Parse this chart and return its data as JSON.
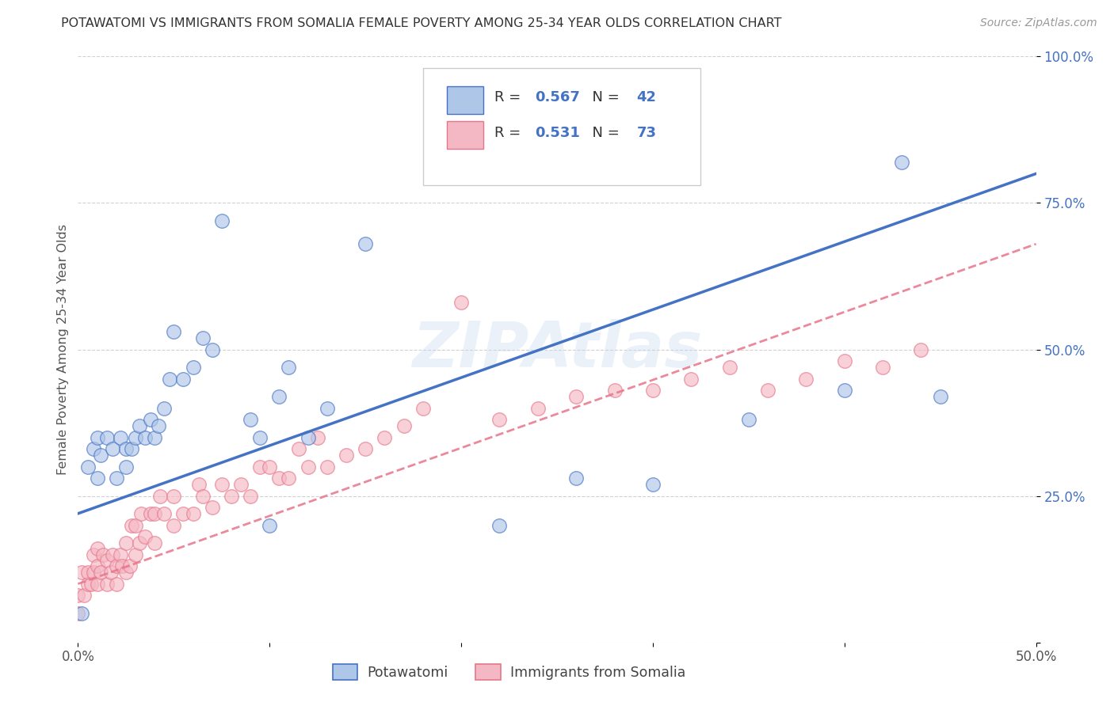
{
  "title": "POTAWATOMI VS IMMIGRANTS FROM SOMALIA FEMALE POVERTY AMONG 25-34 YEAR OLDS CORRELATION CHART",
  "source": "Source: ZipAtlas.com",
  "ylabel": "Female Poverty Among 25-34 Year Olds",
  "xlim": [
    0.0,
    0.5
  ],
  "ylim": [
    0.0,
    1.0
  ],
  "legend1_label": "Potawatomi",
  "legend2_label": "Immigrants from Somalia",
  "R1": 0.567,
  "N1": 42,
  "R2": 0.531,
  "N2": 73,
  "color1": "#aec6e8",
  "color2": "#f4b8c4",
  "line_color1": "#4472c4",
  "line_color2": "#e8758a",
  "background_color": "#ffffff",
  "watermark": "ZIPAtlas",
  "potawatomi_x": [
    0.002,
    0.005,
    0.008,
    0.01,
    0.01,
    0.012,
    0.015,
    0.018,
    0.02,
    0.022,
    0.025,
    0.025,
    0.028,
    0.03,
    0.032,
    0.035,
    0.038,
    0.04,
    0.042,
    0.045,
    0.048,
    0.05,
    0.055,
    0.06,
    0.065,
    0.07,
    0.075,
    0.09,
    0.095,
    0.1,
    0.105,
    0.11,
    0.12,
    0.13,
    0.15,
    0.22,
    0.26,
    0.3,
    0.35,
    0.4,
    0.43,
    0.45
  ],
  "potawatomi_y": [
    0.05,
    0.3,
    0.33,
    0.28,
    0.35,
    0.32,
    0.35,
    0.33,
    0.28,
    0.35,
    0.3,
    0.33,
    0.33,
    0.35,
    0.37,
    0.35,
    0.38,
    0.35,
    0.37,
    0.4,
    0.45,
    0.53,
    0.45,
    0.47,
    0.52,
    0.5,
    0.72,
    0.38,
    0.35,
    0.2,
    0.42,
    0.47,
    0.35,
    0.4,
    0.68,
    0.2,
    0.28,
    0.27,
    0.38,
    0.43,
    0.82,
    0.42
  ],
  "somalia_x": [
    0.0,
    0.0,
    0.002,
    0.003,
    0.005,
    0.005,
    0.007,
    0.008,
    0.008,
    0.01,
    0.01,
    0.01,
    0.012,
    0.013,
    0.015,
    0.015,
    0.017,
    0.018,
    0.02,
    0.02,
    0.022,
    0.023,
    0.025,
    0.025,
    0.027,
    0.028,
    0.03,
    0.03,
    0.032,
    0.033,
    0.035,
    0.038,
    0.04,
    0.04,
    0.043,
    0.045,
    0.05,
    0.05,
    0.055,
    0.06,
    0.063,
    0.065,
    0.07,
    0.075,
    0.08,
    0.085,
    0.09,
    0.095,
    0.1,
    0.105,
    0.11,
    0.115,
    0.12,
    0.125,
    0.13,
    0.14,
    0.15,
    0.16,
    0.17,
    0.18,
    0.2,
    0.22,
    0.24,
    0.26,
    0.28,
    0.3,
    0.32,
    0.34,
    0.36,
    0.38,
    0.4,
    0.42,
    0.44
  ],
  "somalia_y": [
    0.05,
    0.08,
    0.12,
    0.08,
    0.1,
    0.12,
    0.1,
    0.12,
    0.15,
    0.1,
    0.13,
    0.16,
    0.12,
    0.15,
    0.1,
    0.14,
    0.12,
    0.15,
    0.1,
    0.13,
    0.15,
    0.13,
    0.12,
    0.17,
    0.13,
    0.2,
    0.15,
    0.2,
    0.17,
    0.22,
    0.18,
    0.22,
    0.17,
    0.22,
    0.25,
    0.22,
    0.2,
    0.25,
    0.22,
    0.22,
    0.27,
    0.25,
    0.23,
    0.27,
    0.25,
    0.27,
    0.25,
    0.3,
    0.3,
    0.28,
    0.28,
    0.33,
    0.3,
    0.35,
    0.3,
    0.32,
    0.33,
    0.35,
    0.37,
    0.4,
    0.58,
    0.38,
    0.4,
    0.42,
    0.43,
    0.43,
    0.45,
    0.47,
    0.43,
    0.45,
    0.48,
    0.47,
    0.5
  ],
  "line1_x0": 0.0,
  "line1_y0": 0.22,
  "line1_x1": 0.5,
  "line1_y1": 0.8,
  "line2_x0": 0.0,
  "line2_y0": 0.1,
  "line2_x1": 0.5,
  "line2_y1": 0.68
}
